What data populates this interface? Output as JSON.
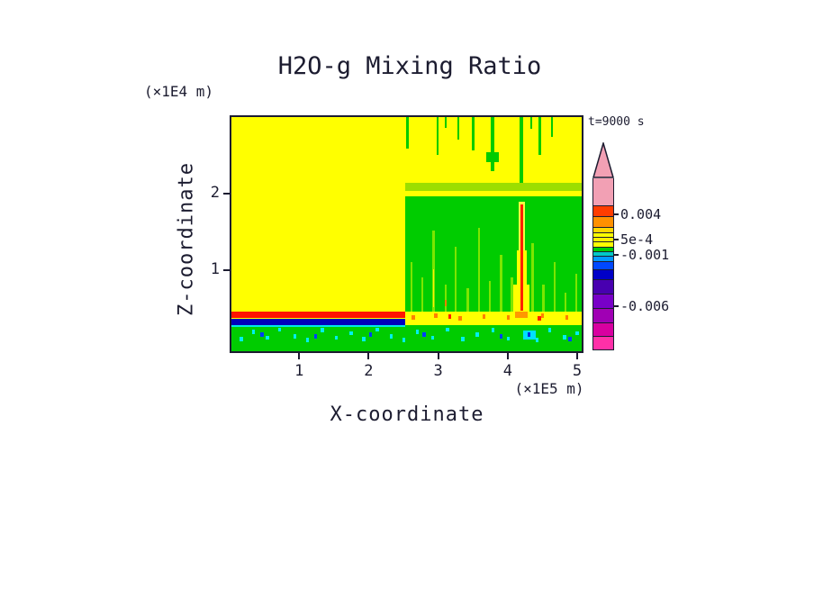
{
  "chart_data": {
    "type": "heatmap",
    "title": "H2O-g Mixing Ratio",
    "time": "t=9000 s",
    "xlabel": "X-coordinate",
    "ylabel": "Z-coordinate",
    "x_unit": "(×1E5 m)",
    "y_unit": "(×1E4 m)",
    "xlim": [
      0,
      5.09
    ],
    "zlim": [
      -0.08,
      3.02
    ],
    "x_ticks": [
      1,
      2,
      3,
      4,
      5
    ],
    "z_ticks": [
      1,
      2
    ],
    "legend_position": "right",
    "colorbar_value_labels": [
      "0.004",
      "5e-4",
      "-0.001",
      "-0.006"
    ],
    "speckle_size": [
      0.045,
      0.055
    ],
    "regions": [
      [
        0,
        5.09,
        -0.08,
        3.02,
        "#FFFF00"
      ],
      [
        0,
        5.09,
        -0.08,
        0.26,
        "#00CC00"
      ],
      [
        0,
        2.52,
        0.245,
        0.262,
        "#00E8E8"
      ],
      [
        0,
        2.52,
        0.262,
        0.345,
        "#0000BB"
      ],
      [
        0,
        2.52,
        0.365,
        0.445,
        "#FF1400"
      ],
      [
        2.52,
        5.09,
        0.445,
        1.97,
        "#00CC00"
      ],
      [
        2.52,
        5.09,
        2.04,
        2.15,
        "#9CDE00"
      ],
      [
        2.54,
        2.575,
        2.6,
        3.02,
        "#00CC00"
      ],
      [
        2.98,
        3.015,
        2.52,
        3.02,
        "#00CC00"
      ],
      [
        3.1,
        3.13,
        2.88,
        3.02,
        "#00CC00"
      ],
      [
        3.28,
        3.31,
        2.72,
        3.02,
        "#00CC00"
      ],
      [
        3.5,
        3.535,
        2.58,
        3.02,
        "#00CC00"
      ],
      [
        3.77,
        3.815,
        2.3,
        3.02,
        "#00CC00"
      ],
      [
        3.7,
        3.88,
        2.42,
        2.56,
        "#00CC00"
      ],
      [
        4.185,
        4.235,
        2.15,
        3.02,
        "#00CC00"
      ],
      [
        4.34,
        4.37,
        2.86,
        3.02,
        "#00CC00"
      ],
      [
        4.46,
        4.495,
        2.52,
        3.02,
        "#00CC00"
      ],
      [
        4.64,
        4.67,
        2.76,
        3.02,
        "#00CC00"
      ],
      [
        2.6,
        2.635,
        0.445,
        1.1,
        "#7CE600"
      ],
      [
        2.76,
        2.79,
        0.445,
        0.9,
        "#7CE600"
      ],
      [
        2.92,
        2.955,
        0.445,
        1.52,
        "#7CE600"
      ],
      [
        3.1,
        3.13,
        0.445,
        0.8,
        "#7CE600"
      ],
      [
        3.24,
        3.275,
        0.445,
        1.3,
        "#7CE600"
      ],
      [
        3.42,
        3.45,
        0.445,
        0.75,
        "#7CE600"
      ],
      [
        3.58,
        3.615,
        0.445,
        1.55,
        "#7CE600"
      ],
      [
        3.74,
        3.77,
        0.445,
        0.85,
        "#7CE600"
      ],
      [
        3.9,
        3.935,
        0.445,
        1.2,
        "#7CE600"
      ],
      [
        4.06,
        4.09,
        0.445,
        0.9,
        "#7CE600"
      ],
      [
        4.36,
        4.395,
        0.445,
        1.35,
        "#7CE600"
      ],
      [
        4.52,
        4.55,
        0.445,
        0.8,
        "#7CE600"
      ],
      [
        4.68,
        4.715,
        0.445,
        1.1,
        "#7CE600"
      ],
      [
        4.84,
        4.87,
        0.445,
        0.7,
        "#7CE600"
      ],
      [
        5.0,
        5.03,
        0.445,
        0.95,
        "#7CE600"
      ],
      [
        2.925,
        2.95,
        0.5,
        1.0,
        "#FFF000"
      ],
      [
        3.095,
        3.125,
        0.52,
        0.6,
        "#FF8000"
      ],
      [
        4.1,
        4.33,
        0.445,
        0.8,
        "#FFFF00"
      ],
      [
        4.15,
        4.29,
        0.8,
        1.25,
        "#FFFF00"
      ],
      [
        4.18,
        4.26,
        1.25,
        1.9,
        "#F0FF40"
      ],
      [
        4.205,
        4.235,
        0.46,
        1.86,
        "#FF2000"
      ],
      [
        4.12,
        4.31,
        0.36,
        0.445,
        "#FF9800"
      ],
      [
        4.24,
        4.42,
        0.08,
        0.2,
        "#00E0FF"
      ]
    ],
    "speckles": [
      [
        0.12,
        0.05,
        "#00F0F0"
      ],
      [
        0.3,
        0.15,
        "#00F0F0"
      ],
      [
        0.5,
        0.07,
        "#00F0F0"
      ],
      [
        0.68,
        0.18,
        "#00F0F0"
      ],
      [
        0.9,
        0.09,
        "#00F0F0"
      ],
      [
        1.08,
        0.04,
        "#00F0F0"
      ],
      [
        1.3,
        0.17,
        "#00F0F0"
      ],
      [
        1.5,
        0.07,
        "#00F0F0"
      ],
      [
        1.72,
        0.13,
        "#00F0F0"
      ],
      [
        1.9,
        0.05,
        "#00F0F0"
      ],
      [
        2.1,
        0.18,
        "#00F0F0"
      ],
      [
        2.3,
        0.09,
        "#00F0F0"
      ],
      [
        2.48,
        0.04,
        "#00F0F0"
      ],
      [
        2.68,
        0.15,
        "#00F0F0"
      ],
      [
        2.9,
        0.07,
        "#00F0F0"
      ],
      [
        3.12,
        0.18,
        "#00F0F0"
      ],
      [
        3.34,
        0.05,
        "#00F0F0"
      ],
      [
        3.55,
        0.11,
        "#00F0F0"
      ],
      [
        3.78,
        0.17,
        "#00F0F0"
      ],
      [
        4.0,
        0.06,
        "#00F0F0"
      ],
      [
        4.42,
        0.04,
        "#00F0F0"
      ],
      [
        4.6,
        0.17,
        "#00F0F0"
      ],
      [
        4.82,
        0.08,
        "#00F0F0"
      ],
      [
        5.0,
        0.13,
        "#00F0F0"
      ],
      [
        0.42,
        0.11,
        "#0040FF"
      ],
      [
        1.2,
        0.09,
        "#0040FF"
      ],
      [
        2.0,
        0.11,
        "#0040FF"
      ],
      [
        2.78,
        0.11,
        "#0040FF"
      ],
      [
        3.9,
        0.09,
        "#0040FF"
      ],
      [
        4.9,
        0.05,
        "#0040FF"
      ],
      [
        4.3,
        0.11,
        "#0030E0"
      ],
      [
        2.62,
        0.34,
        "#FF8000"
      ],
      [
        2.95,
        0.36,
        "#FF8000"
      ],
      [
        3.3,
        0.33,
        "#FF8000"
      ],
      [
        3.65,
        0.35,
        "#FF8000"
      ],
      [
        4.0,
        0.34,
        "#FF8000"
      ],
      [
        4.5,
        0.36,
        "#FF8000"
      ],
      [
        4.85,
        0.34,
        "#FF8000"
      ],
      [
        3.15,
        0.35,
        "#FF2000"
      ],
      [
        4.45,
        0.33,
        "#FF2000"
      ]
    ]
  },
  "colorbar": {
    "arrow_color": "#F2A0B4",
    "arrow_h": 40,
    "segments": [
      [
        "#F2A0B4",
        30
      ],
      [
        "#FF3C00",
        12
      ],
      [
        "#FF9000",
        12
      ],
      [
        "#FFD800",
        6
      ],
      [
        "#FFFF00",
        5
      ],
      [
        "#FFF000",
        5
      ],
      [
        "#FFFF00",
        6
      ],
      [
        "#00CC00",
        5
      ],
      [
        "#00C8C8",
        5
      ],
      [
        "#0098FF",
        6
      ],
      [
        "#0048FF",
        9
      ],
      [
        "#0000C8",
        11
      ],
      [
        "#4800B0",
        16
      ],
      [
        "#7800C8",
        16
      ],
      [
        "#A000B4",
        16
      ],
      [
        "#D800A0",
        15
      ],
      [
        "#FF30A8",
        15
      ]
    ],
    "labels": [
      [
        "0.004",
        40
      ],
      [
        "5e-4",
        68
      ],
      [
        "-0.001",
        85
      ],
      [
        "-0.006",
        142
      ]
    ]
  }
}
